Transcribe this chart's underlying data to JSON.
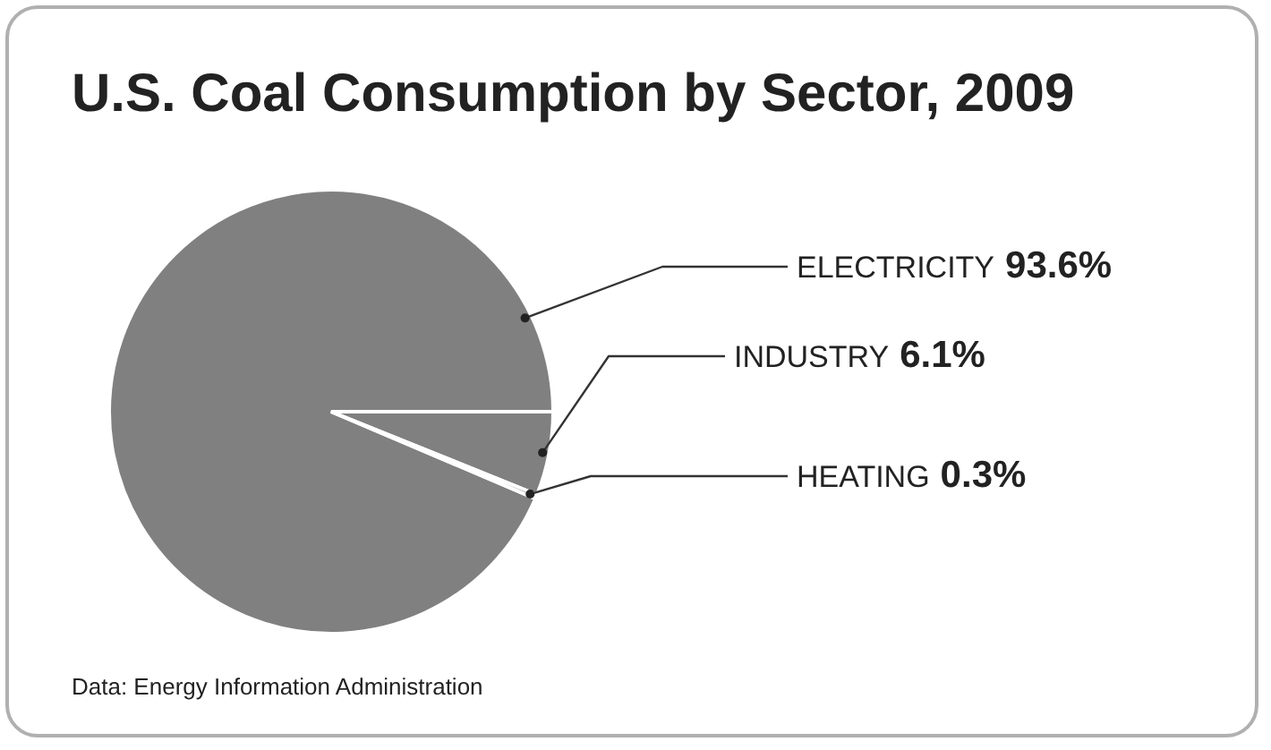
{
  "chart_data": {
    "type": "pie",
    "title": "U.S. Coal Consumption by Sector, 2009",
    "categories": [
      "ELECTRICITY",
      "INDUSTRY",
      "HEATING"
    ],
    "values": [
      93.6,
      6.1,
      0.3
    ],
    "colors": [
      "#808080",
      "#808080",
      "#808080"
    ],
    "value_labels": [
      "93.6%",
      "6.1%",
      "0.3%"
    ],
    "legend": false,
    "annotations": [
      "Data: Energy Information Administration"
    ]
  }
}
